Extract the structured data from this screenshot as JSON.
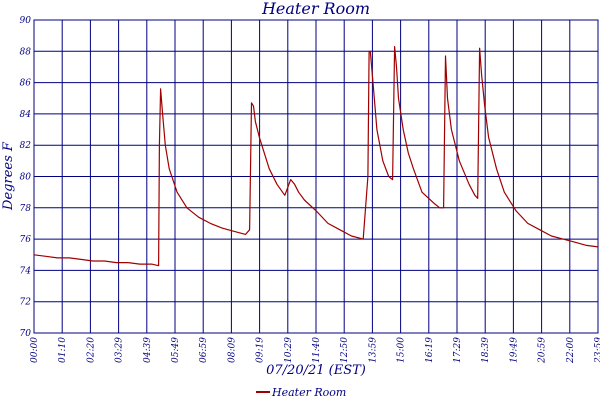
{
  "chart_data": {
    "type": "line",
    "title": "Heater Room",
    "xlabel": "07/20/21 (EST)",
    "ylabel": "Degrees F",
    "x_tick_labels": [
      "00:00",
      "01:10",
      "02:20",
      "03:29",
      "04:39",
      "05:49",
      "06:59",
      "08:09",
      "09:19",
      "10:29",
      "11:40",
      "12:50",
      "13:59",
      "15:00",
      "16:19",
      "17:29",
      "18:39",
      "19:49",
      "20:59",
      "22:00",
      "23:59"
    ],
    "y_ticks": [
      70,
      72,
      74,
      76,
      78,
      80,
      82,
      84,
      86,
      88,
      90
    ],
    "ylim": [
      70,
      90
    ],
    "xlim_minutes": [
      0,
      1439
    ],
    "grid": true,
    "legend_position": "bottom-center",
    "colors": {
      "series": "#a00000",
      "grid": "#000080",
      "text": "#000080"
    },
    "series": [
      {
        "name": "Heater Room",
        "x": [
          "00:00",
          "00:30",
          "01:00",
          "01:30",
          "02:00",
          "02:30",
          "03:00",
          "03:30",
          "04:00",
          "04:30",
          "05:00",
          "05:18",
          "05:20",
          "05:23",
          "05:28",
          "05:35",
          "05:45",
          "06:05",
          "06:30",
          "07:00",
          "07:30",
          "08:00",
          "08:30",
          "09:00",
          "09:10",
          "09:15",
          "09:20",
          "09:25",
          "09:35",
          "10:00",
          "10:20",
          "10:40",
          "10:55",
          "11:05",
          "11:15",
          "11:30",
          "12:00",
          "12:30",
          "13:00",
          "13:30",
          "14:00",
          "14:12",
          "14:15",
          "14:18",
          "14:25",
          "14:35",
          "14:50",
          "15:05",
          "15:15",
          "15:20",
          "15:25",
          "15:30",
          "15:42",
          "15:55",
          "16:08",
          "16:30",
          "17:00",
          "17:15",
          "17:25",
          "17:30",
          "17:35",
          "17:45",
          "18:05",
          "18:30",
          "18:45",
          "18:52",
          "18:57",
          "19:02",
          "19:10",
          "19:20",
          "19:40",
          "20:00",
          "20:30",
          "21:00",
          "21:30",
          "22:00",
          "22:30",
          "23:00",
          "23:30",
          "23:59"
        ],
        "values": [
          75.0,
          74.9,
          74.8,
          74.8,
          74.7,
          74.6,
          74.6,
          74.5,
          74.5,
          74.4,
          74.4,
          74.3,
          82.0,
          85.6,
          84.0,
          82.0,
          80.5,
          79.0,
          78.0,
          77.4,
          77.0,
          76.7,
          76.5,
          76.3,
          76.6,
          84.7,
          84.5,
          83.5,
          82.5,
          80.5,
          79.5,
          78.8,
          79.8,
          79.5,
          79.0,
          78.5,
          77.8,
          77.0,
          76.6,
          76.2,
          76.0,
          80.0,
          88.0,
          88.0,
          86.0,
          83.0,
          81.0,
          80.0,
          79.8,
          88.3,
          87.0,
          85.0,
          83.0,
          81.5,
          80.5,
          79.0,
          78.3,
          78.0,
          78.0,
          87.7,
          85.0,
          83.0,
          81.0,
          79.5,
          78.8,
          78.6,
          88.2,
          86.5,
          84.5,
          82.5,
          80.5,
          79.0,
          77.8,
          77.0,
          76.6,
          76.2,
          76.0,
          75.8,
          75.6,
          75.5
        ]
      }
    ]
  }
}
